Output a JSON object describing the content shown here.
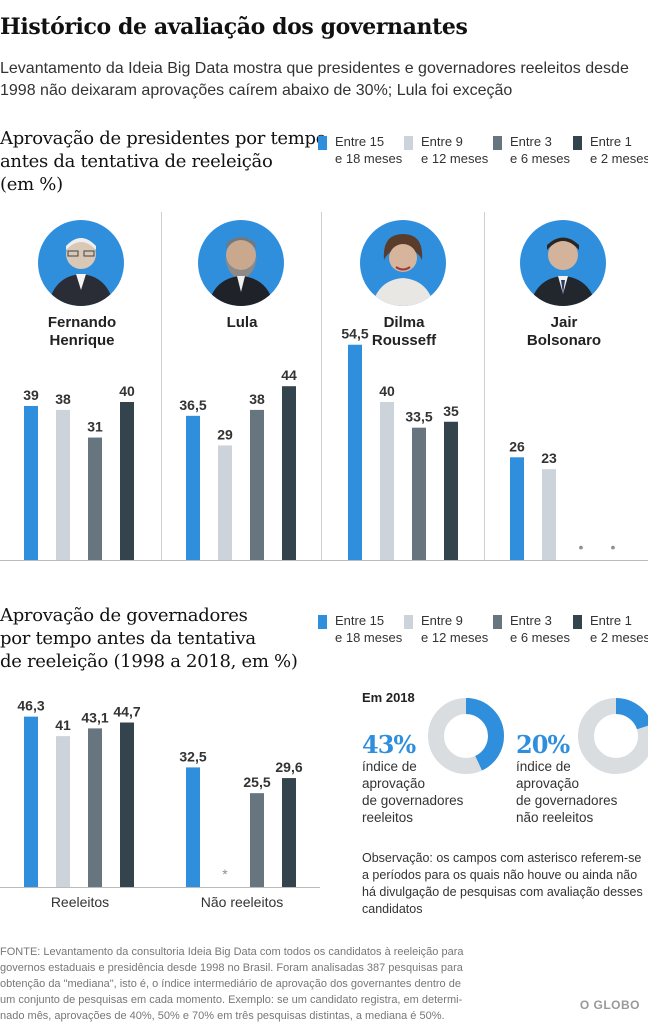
{
  "header": {
    "title": "Histórico de avaliação dos governantes",
    "subtitle": "Levantamento da Ideia Big Data mostra que presidentes e governadores reeleitos desde 1998 não deixaram aprovações caírem abaixo de 30%; Lula foi exceção"
  },
  "presidents_section": {
    "title_lines": [
      "Aprovação de presidentes por tempo",
      "antes da tentativa de reeleição",
      "(em %)"
    ],
    "names": [
      [
        "Fernando",
        "Henrique"
      ],
      [
        "Lula",
        ""
      ],
      [
        "Dilma",
        "Rousseff"
      ],
      [
        "Jair",
        "Bolsonaro"
      ]
    ]
  },
  "governors_section": {
    "title_lines": [
      "Aprovação de governadores",
      "por tempo antes da tentativa",
      "de reeleição (1998 a 2018, em %)"
    ]
  },
  "legend": [
    {
      "line1": "Entre 15",
      "line2": "e 18 meses",
      "color": "#2f8fdd"
    },
    {
      "line1": "Entre 9",
      "line2": "e 12 meses",
      "color": "#ccd3da"
    },
    {
      "line1": "Entre 3",
      "line2": "e 6 meses",
      "color": "#67757e"
    },
    {
      "line1": "Entre 1",
      "line2": "e 2 meses",
      "color": "#34444d"
    }
  ],
  "chart_data": [
    {
      "type": "bar",
      "title": "Aprovação de presidentes por tempo antes da tentativa de reeleição (em %)",
      "categories": [
        "Fernando Henrique",
        "Lula",
        "Dilma Rousseff",
        "Jair Bolsonaro"
      ],
      "series": [
        {
          "name": "Entre 15 e 18 meses",
          "values": [
            39,
            36.5,
            54.5,
            26
          ],
          "labels": [
            "39",
            "36,5",
            "54,5",
            "26"
          ]
        },
        {
          "name": "Entre 9 e 12 meses",
          "values": [
            38,
            29,
            40,
            23
          ],
          "labels": [
            "38",
            "29",
            "40",
            "23"
          ]
        },
        {
          "name": "Entre 3 e 6 meses",
          "values": [
            31,
            38,
            33.5,
            null
          ],
          "labels": [
            "31",
            "38",
            "33,5",
            null
          ]
        },
        {
          "name": "Entre 1 e 2 meses",
          "values": [
            40,
            44,
            35,
            null
          ],
          "labels": [
            "40",
            "44",
            "35",
            null
          ]
        }
      ],
      "missing_marker": "•",
      "ylim": [
        0,
        60
      ]
    },
    {
      "type": "bar",
      "title": "Aprovação de governadores por tempo antes da tentativa de reeleição (1998 a 2018, em %)",
      "categories": [
        "Reeleitos",
        "Não reeleitos"
      ],
      "series": [
        {
          "name": "Entre 15 e 18 meses",
          "values": [
            46.3,
            32.5
          ],
          "labels": [
            "46,3",
            "32,5"
          ]
        },
        {
          "name": "Entre 9 e 12 meses",
          "values": [
            41,
            null
          ],
          "labels": [
            "41",
            null
          ]
        },
        {
          "name": "Entre 3 e 6 meses",
          "values": [
            43.1,
            25.5
          ],
          "labels": [
            "43,1",
            "25,5"
          ]
        },
        {
          "name": "Entre 1 e 2 meses",
          "values": [
            44.7,
            29.6
          ],
          "labels": [
            "44,7",
            "29,6"
          ]
        }
      ],
      "missing_marker": "*",
      "ylim": [
        0,
        60
      ]
    },
    {
      "type": "pie",
      "title": "Em 2018",
      "slices": [
        {
          "label": "índice de aprovação de governadores reeleitos",
          "value": 43,
          "display": "43%"
        },
        {
          "label": "índice de aprovação de governadores não reeleitos",
          "value": 20,
          "display": "20%"
        }
      ]
    }
  ],
  "stats": {
    "heading": "Em 2018",
    "reeleitos_pct": "43%",
    "reeleitos_lines": [
      "índice de",
      "aprovação",
      "de governadores",
      "reeleitos"
    ],
    "nao_pct": "20%",
    "nao_lines": [
      "índice de",
      "aprovação",
      "de governadores",
      "não reeleitos"
    ]
  },
  "note": "Observação: os campos com asterisco referem-se a períodos para os quais não houve ou ainda não há divulgação de pesquisas com avaliação desses candidatos",
  "footer_lines": [
    "FONTE: Levantamento da consultoria Ideia Big Data com todos os candidatos à reeleição para",
    "governos estaduais e presidência desde 1998 no Brasil. Foram analisadas 387 pesquisas para",
    "obtenção da \"mediana\", isto é, o índice intermediário de aprovação dos governantes dentro de",
    "um conjunto de pesquisas em cada momento. Exemplo: se um candidato registra, em determi-",
    "nado mês, aprovações de 40%, 50% e 70% em três pesquisas distintas, a mediana é 50%."
  ],
  "brand": "O GLOBO",
  "colors": {
    "c15": "#2f8fdd",
    "c9": "#ccd3da",
    "c3": "#67757e",
    "c1": "#34444d",
    "donut_bg": "#dadde0"
  }
}
